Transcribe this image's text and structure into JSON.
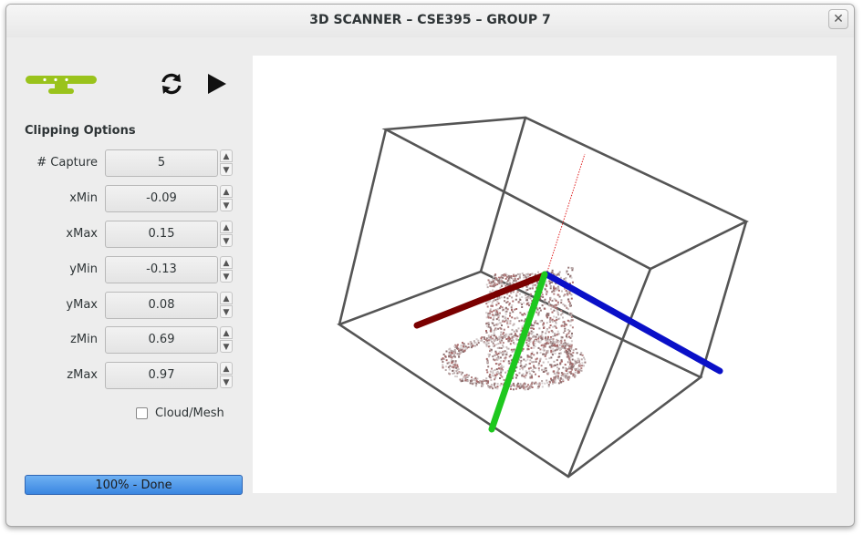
{
  "window": {
    "title": "3D SCANNER – CSE395 – GROUP 7",
    "close_glyph": "✕"
  },
  "toolbar": {
    "logo_icon": "kinect-sensor-icon",
    "logo_color": "#9ac31c",
    "refresh_icon": "refresh-icon",
    "play_icon": "play-icon"
  },
  "clipping": {
    "title": "Clipping Options",
    "fields": [
      {
        "label": "# Capture",
        "value": "5"
      },
      {
        "label": "xMin",
        "value": "-0.09"
      },
      {
        "label": "xMax",
        "value": "0.15"
      },
      {
        "label": "yMin",
        "value": "-0.13"
      },
      {
        "label": "yMax",
        "value": "0.08"
      },
      {
        "label": "zMin",
        "value": "0.69"
      },
      {
        "label": "zMax",
        "value": "0.97"
      }
    ]
  },
  "cloud_mesh": {
    "label": "Cloud/Mesh",
    "checked": false
  },
  "progress": {
    "text": "100% - Done",
    "fraction": 1.0,
    "color": "#3a86e1"
  },
  "viewport": {
    "axis_colors": {
      "x": "#7a0000",
      "y": "#1ec81e",
      "z": "#0a10c8"
    },
    "box_color": "#555555",
    "cloud_color": "#b8a8a8"
  }
}
